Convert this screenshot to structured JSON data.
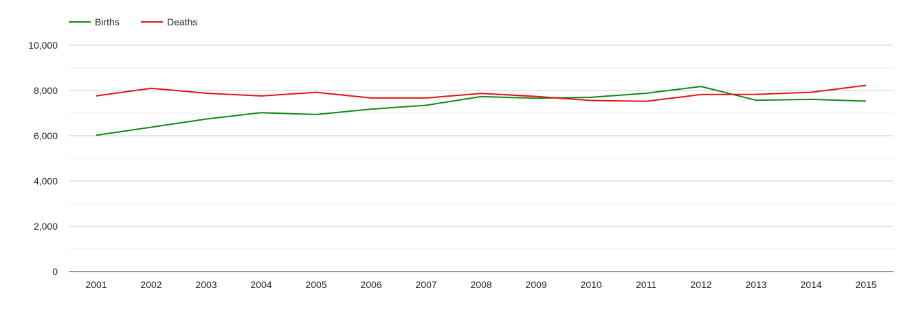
{
  "chart_data": {
    "type": "line",
    "categories": [
      "2001",
      "2002",
      "2003",
      "2004",
      "2005",
      "2006",
      "2007",
      "2008",
      "2009",
      "2010",
      "2011",
      "2012",
      "2013",
      "2014",
      "2015"
    ],
    "series": [
      {
        "name": "Births",
        "color": "#138813",
        "values": [
          6020,
          6380,
          6740,
          7020,
          6940,
          7180,
          7350,
          7730,
          7660,
          7700,
          7880,
          8180,
          7570,
          7610,
          7530
        ]
      },
      {
        "name": "Deaths",
        "color": "#e41313",
        "values": [
          7760,
          8100,
          7880,
          7760,
          7920,
          7670,
          7670,
          7870,
          7740,
          7560,
          7520,
          7820,
          7830,
          7920,
          8230
        ]
      }
    ],
    "ylim": [
      0,
      10000
    ],
    "yticks": [
      "0",
      "2,000",
      "4,000",
      "6,000",
      "8,000",
      "10,000"
    ],
    "ytick_values": [
      0,
      2000,
      4000,
      6000,
      8000,
      10000
    ],
    "grid": true,
    "legend_position": "top-left",
    "title": "",
    "xlabel": "",
    "ylabel": ""
  }
}
